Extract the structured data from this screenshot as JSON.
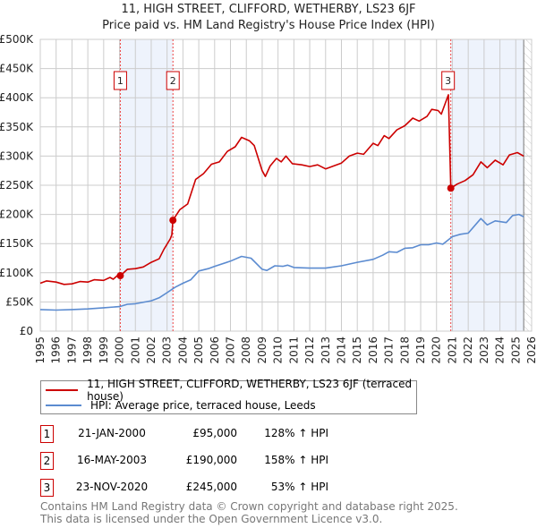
{
  "chart_data": {
    "type": "line",
    "title": "11, HIGH STREET, CLIFFORD, WETHERBY, LS23 6JF",
    "subtitle": "Price paid vs. HM Land Registry's House Price Index (HPI)",
    "xlim": [
      1995,
      2026
    ],
    "ylim": [
      0,
      500000
    ],
    "x_ticks": [
      1995,
      1996,
      1997,
      1998,
      1999,
      2000,
      2001,
      2002,
      2003,
      2004,
      2005,
      2006,
      2007,
      2008,
      2009,
      2010,
      2011,
      2012,
      2013,
      2014,
      2015,
      2016,
      2017,
      2018,
      2019,
      2020,
      2021,
      2022,
      2023,
      2024,
      2025,
      2026
    ],
    "y_ticks": [
      {
        "v": 0,
        "label": "£0"
      },
      {
        "v": 50000,
        "label": "£50K"
      },
      {
        "v": 100000,
        "label": "£100K"
      },
      {
        "v": 150000,
        "label": "£150K"
      },
      {
        "v": 200000,
        "label": "£200K"
      },
      {
        "v": 250000,
        "label": "£250K"
      },
      {
        "v": 300000,
        "label": "£300K"
      },
      {
        "v": 350000,
        "label": "£350K"
      },
      {
        "v": 400000,
        "label": "£400K"
      },
      {
        "v": 450000,
        "label": "£450K"
      },
      {
        "v": 500000,
        "label": "£500K"
      }
    ],
    "grid": true,
    "shaded_ranges": [
      [
        2000.05,
        2003.37
      ],
      [
        2020.9,
        2025.5
      ]
    ],
    "data_end": 2025.5,
    "series": [
      {
        "name": "11, HIGH STREET, CLIFFORD, WETHERBY, LS23 6JF (terraced house)",
        "color": "#cc0000",
        "points": [
          [
            1995,
            82
          ],
          [
            1995.4,
            86
          ],
          [
            1996,
            84
          ],
          [
            1996.5,
            80
          ],
          [
            1997,
            81
          ],
          [
            1997.5,
            85
          ],
          [
            1998,
            84
          ],
          [
            1998.4,
            88
          ],
          [
            1999,
            87
          ],
          [
            1999.4,
            92
          ],
          [
            1999.6,
            89
          ],
          [
            1999.9,
            96
          ],
          [
            2000.05,
            95
          ],
          [
            2000.5,
            106
          ],
          [
            2001,
            107
          ],
          [
            2001.5,
            110
          ],
          [
            2002,
            118
          ],
          [
            2002.5,
            124
          ],
          [
            2002.8,
            140
          ],
          [
            2003.2,
            158
          ],
          [
            2003.3,
            165
          ],
          [
            2003.37,
            190
          ],
          [
            2003.8,
            208
          ],
          [
            2004.3,
            218
          ],
          [
            2004.8,
            260
          ],
          [
            2005.3,
            270
          ],
          [
            2005.8,
            286
          ],
          [
            2006.3,
            290
          ],
          [
            2006.8,
            308
          ],
          [
            2007.3,
            316
          ],
          [
            2007.7,
            332
          ],
          [
            2008.2,
            326
          ],
          [
            2008.5,
            318
          ],
          [
            2009.0,
            275
          ],
          [
            2009.2,
            265
          ],
          [
            2009.5,
            283
          ],
          [
            2009.9,
            296
          ],
          [
            2010.2,
            290
          ],
          [
            2010.5,
            300
          ],
          [
            2010.9,
            287
          ],
          [
            2011.5,
            285
          ],
          [
            2012,
            282
          ],
          [
            2012.5,
            285
          ],
          [
            2013,
            278
          ],
          [
            2013.5,
            283
          ],
          [
            2014,
            288
          ],
          [
            2014.5,
            300
          ],
          [
            2015,
            305
          ],
          [
            2015.4,
            303
          ],
          [
            2016,
            322
          ],
          [
            2016.3,
            318
          ],
          [
            2016.7,
            335
          ],
          [
            2017,
            330
          ],
          [
            2017.5,
            345
          ],
          [
            2018,
            352
          ],
          [
            2018.5,
            365
          ],
          [
            2018.9,
            360
          ],
          [
            2019.4,
            368
          ],
          [
            2019.7,
            380
          ],
          [
            2020.1,
            378
          ],
          [
            2020.3,
            372
          ],
          [
            2020.75,
            405
          ],
          [
            2020.9,
            245
          ],
          [
            2021.3,
            252
          ],
          [
            2021.8,
            258
          ],
          [
            2022.3,
            268
          ],
          [
            2022.8,
            290
          ],
          [
            2023.2,
            280
          ],
          [
            2023.7,
            293
          ],
          [
            2024.2,
            285
          ],
          [
            2024.6,
            302
          ],
          [
            2025.1,
            306
          ],
          [
            2025.5,
            300
          ]
        ]
      },
      {
        "name": "HPI: Average price, terraced house, Leeds",
        "color": "#5b8bd0",
        "points": [
          [
            1995,
            37
          ],
          [
            1996,
            36
          ],
          [
            1997,
            37
          ],
          [
            1998,
            38
          ],
          [
            1999,
            40
          ],
          [
            2000,
            42
          ],
          [
            2000.5,
            46
          ],
          [
            2001,
            47
          ],
          [
            2002,
            52
          ],
          [
            2002.5,
            57
          ],
          [
            2003,
            66
          ],
          [
            2003.5,
            75
          ],
          [
            2004,
            82
          ],
          [
            2004.5,
            88
          ],
          [
            2005,
            103
          ],
          [
            2005.6,
            107
          ],
          [
            2006,
            111
          ],
          [
            2007,
            120
          ],
          [
            2007.7,
            128
          ],
          [
            2008.3,
            125
          ],
          [
            2009,
            106
          ],
          [
            2009.3,
            104
          ],
          [
            2009.8,
            112
          ],
          [
            2010.3,
            111
          ],
          [
            2010.6,
            113
          ],
          [
            2011,
            109
          ],
          [
            2012,
            108
          ],
          [
            2013,
            108
          ],
          [
            2014,
            112
          ],
          [
            2015,
            118
          ],
          [
            2016,
            123
          ],
          [
            2016.6,
            130
          ],
          [
            2017,
            136
          ],
          [
            2017.5,
            135
          ],
          [
            2018,
            142
          ],
          [
            2018.5,
            143
          ],
          [
            2019,
            148
          ],
          [
            2019.5,
            148
          ],
          [
            2020,
            151
          ],
          [
            2020.4,
            149
          ],
          [
            2021,
            162
          ],
          [
            2021.5,
            166
          ],
          [
            2022,
            168
          ],
          [
            2022.8,
            193
          ],
          [
            2023.2,
            182
          ],
          [
            2023.7,
            189
          ],
          [
            2024.4,
            186
          ],
          [
            2024.8,
            198
          ],
          [
            2025.2,
            200
          ],
          [
            2025.5,
            196
          ]
        ]
      }
    ],
    "sales": [
      {
        "id": "1",
        "x": 2000.05,
        "value": 95,
        "date": "21-JAN-2000",
        "price": "£95,000",
        "hpi": "128% ↑ HPI"
      },
      {
        "id": "2",
        "x": 2003.37,
        "value": 190,
        "date": "16-MAY-2003",
        "price": "£190,000",
        "hpi": "158% ↑ HPI"
      },
      {
        "id": "3",
        "x": 2020.9,
        "value": 245,
        "date": "23-NOV-2020",
        "price": "£245,000",
        "hpi": "53% ↑ HPI"
      }
    ],
    "value_units": "thousands GBP (points)"
  },
  "legend": {
    "red": "11, HIGH STREET, CLIFFORD, WETHERBY, LS23 6JF (terraced house)",
    "blue": "HPI: Average price, terraced house, Leeds"
  },
  "footer": {
    "line1": "Contains HM Land Registry data © Crown copyright and database right 2025.",
    "line2": "This data is licensed under the Open Government Licence v3.0."
  }
}
